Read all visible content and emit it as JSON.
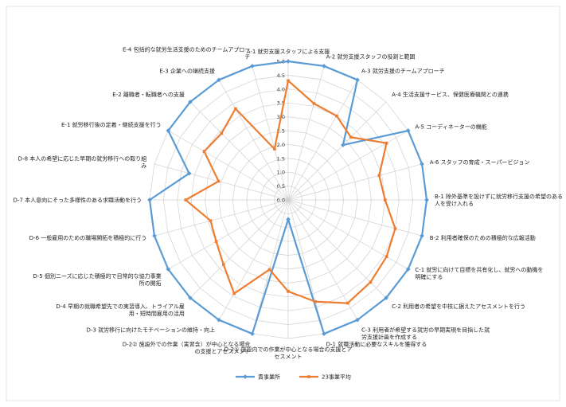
{
  "chart_data": {
    "type": "radar",
    "rmax": 5,
    "ticks": [
      "0.0",
      "0.5",
      "1.0",
      "1.5",
      "2.0",
      "2.5",
      "3.0",
      "3.5",
      "4.0",
      "4.5",
      "5.0"
    ],
    "categories": [
      [
        "A-1 就労支援スタッフによる支援"
      ],
      [
        "A-2 就労支援スタッフの役割と範囲"
      ],
      [
        "A-3 就労支援のチームアプローチ"
      ],
      [
        "A-4 生活支援サービス、保健医療機関との連携"
      ],
      [
        "A-5 コーディネーターの機能"
      ],
      [
        "A-6 スタッフの育成・スーパービジョン"
      ],
      [
        "B-1 除外基準を設けずに就労移行支援の希望のある",
        "人を受け入れる"
      ],
      [
        "B-2 利用者確保のための積極的な広報活動"
      ],
      [
        "C-1 就労に向けて目標を共有化し、就労への動機を",
        "明確にする"
      ],
      [
        "C-2 利用者の希望を中核に据えたアセスメントを行う"
      ],
      [
        "C-3 利用者が希望する就労の早期実現を目指した就",
        "労支援計画を作成する"
      ],
      [
        "D-1 就職活動に必要なスキルを獲得する"
      ],
      [
        "D-2① 施設内での作業が中心となる場合の支援とア",
        "セスメント"
      ],
      [
        "D-2② 施設外での作業（実習含）が中心となる場合",
        "の支援とアセスメント"
      ],
      [
        "D-3 就労移行に向けたモチベーションの維持・向上"
      ],
      [
        "D-4 早期の就職希望先での実習導入、トライアル雇",
        "用・短時間雇用の活用"
      ],
      [
        "D-5 個別ニーズに応じた積極的で目常的な協力事業",
        "所の開拓"
      ],
      [
        "D-6 一般雇用のための職場開拓を積極的に行う"
      ],
      [
        "D-7 本人意向にそった多様性のある求職活動を行う"
      ],
      [
        "D-8 本人の希望に応じた早期の就労移行への取り組",
        "み"
      ],
      [
        "E-1 就労移行後の定着・継続支援を行う"
      ],
      [
        "E-2 離職者・転職者への支援"
      ],
      [
        "E-3 企業への継続支援"
      ],
      [
        "E-4 包括的な就労生活支援のためのチームアプロー",
        "チ"
      ]
    ],
    "series": [
      {
        "name": "貴事業所",
        "color": "#5b9bd5",
        "values": [
          5,
          5,
          5,
          2.8,
          5,
          5,
          5,
          5,
          5,
          5,
          5,
          5,
          0.7,
          5,
          5,
          5,
          5,
          5,
          5,
          3.7,
          5,
          5,
          5,
          5
        ]
      },
      {
        "name": "23事業平均",
        "color": "#ed7d31",
        "values": [
          4.3,
          3.6,
          3.5,
          3.2,
          4.1,
          3.4,
          3.5,
          4.0,
          4.1,
          4.2,
          4.3,
          3.8,
          3.3,
          2.6,
          3.9,
          3.3,
          3.0,
          2.9,
          3.7,
          2.6,
          3.5,
          3.4,
          3.8,
          1.9
        ]
      }
    ]
  }
}
